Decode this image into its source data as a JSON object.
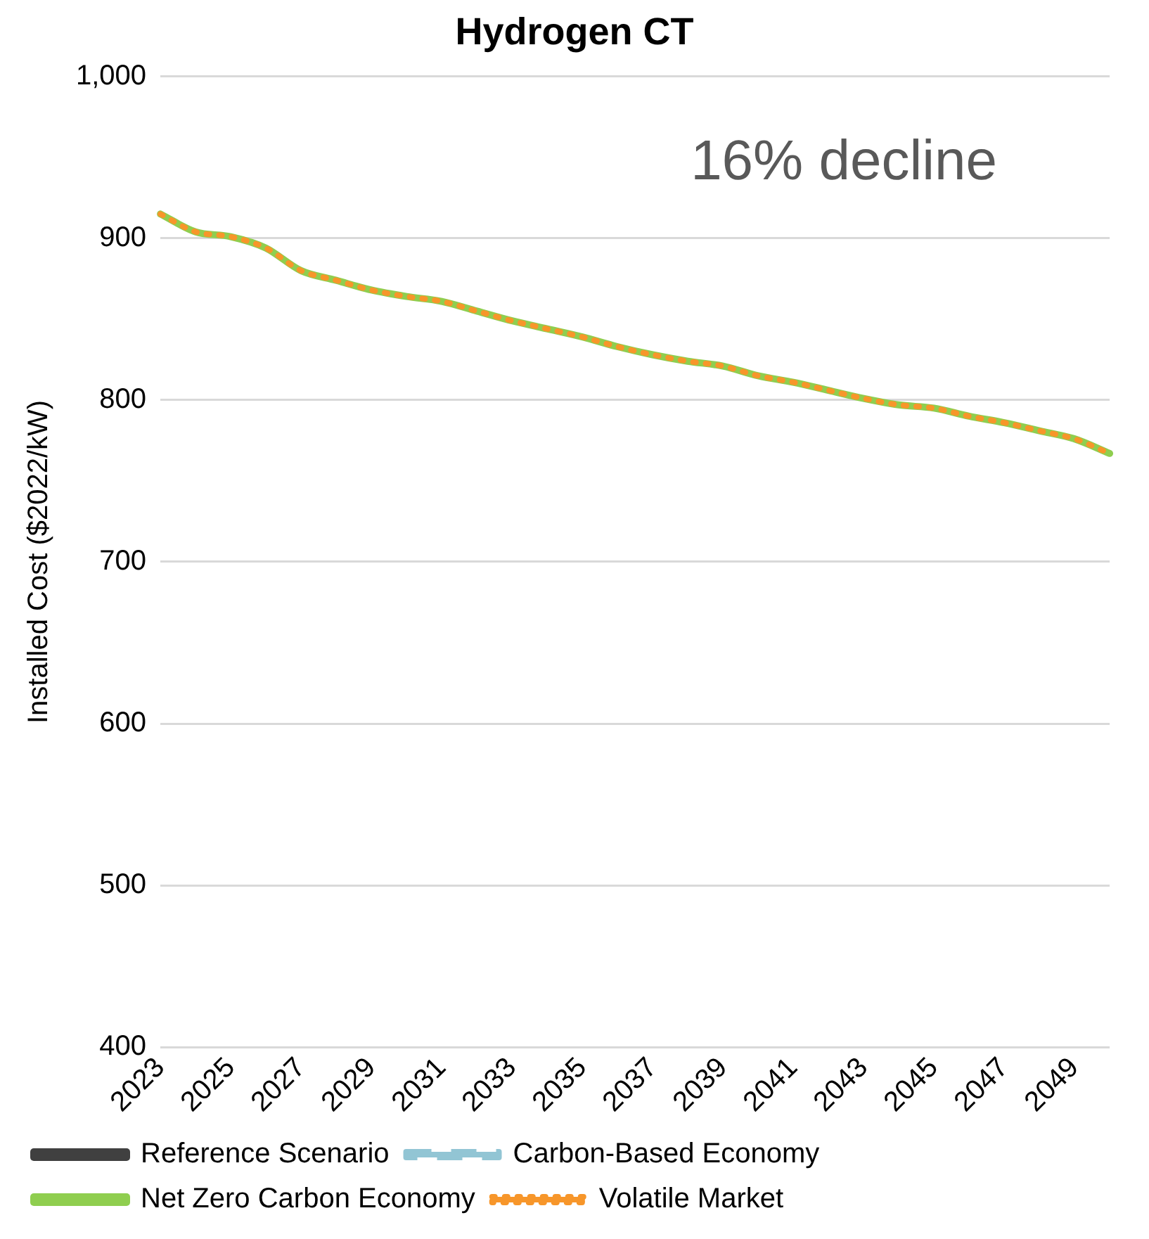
{
  "chart_data": {
    "type": "line",
    "title": "Hydrogen CT",
    "ylabel": "Installed Cost ($2022/kW)",
    "categories": [
      "2023",
      null,
      "2025",
      null,
      "2027",
      null,
      "2029",
      null,
      "2031",
      null,
      "2033",
      null,
      "2035",
      null,
      "2037",
      null,
      "2039",
      null,
      "2041",
      null,
      "2043",
      null,
      "2045",
      null,
      "2047",
      null,
      "2049",
      null
    ],
    "series": [
      {
        "name": "Reference Scenario",
        "color": "#404040",
        "line_style": "solid",
        "values": [
          null,
          null,
          null,
          null,
          null,
          null,
          null,
          null,
          null,
          null,
          null,
          null,
          null,
          null,
          null,
          null,
          null,
          null,
          null,
          null,
          null,
          null,
          null,
          null,
          null,
          null,
          null,
          null
        ]
      },
      {
        "name": "Carbon-Based Economy",
        "color": "#92c5d4",
        "line_style": "dashed",
        "values": [
          null,
          null,
          null,
          null,
          null,
          null,
          null,
          null,
          null,
          null,
          null,
          null,
          null,
          null,
          null,
          null,
          null,
          null,
          null,
          null,
          null,
          null,
          null,
          null,
          null,
          null,
          null,
          null
        ]
      },
      {
        "name": "Net Zero Carbon Economy",
        "color": "#8fce4f",
        "line_style": "solid",
        "values": [
          915,
          904,
          901,
          894,
          880,
          874,
          868,
          864,
          861,
          855,
          849,
          844,
          839,
          833,
          828,
          824,
          821,
          815,
          811,
          806,
          801,
          797,
          795,
          790,
          786,
          781,
          776,
          767
        ]
      },
      {
        "name": "Volatile Market",
        "color": "#f7962a",
        "line_style": "dotted",
        "values": [
          915,
          904,
          901,
          894,
          880,
          874,
          868,
          864,
          861,
          855,
          849,
          844,
          839,
          833,
          828,
          824,
          821,
          815,
          811,
          806,
          801,
          797,
          795,
          790,
          786,
          781,
          776,
          767
        ]
      }
    ],
    "ylim": [
      400,
      1000
    ],
    "yticks": [
      400,
      500,
      600,
      700,
      800,
      900,
      {
        "value": 1000,
        "label": "1,000"
      }
    ],
    "grid": "y",
    "legend": "bottom",
    "annotations": [
      "16% decline"
    ]
  }
}
